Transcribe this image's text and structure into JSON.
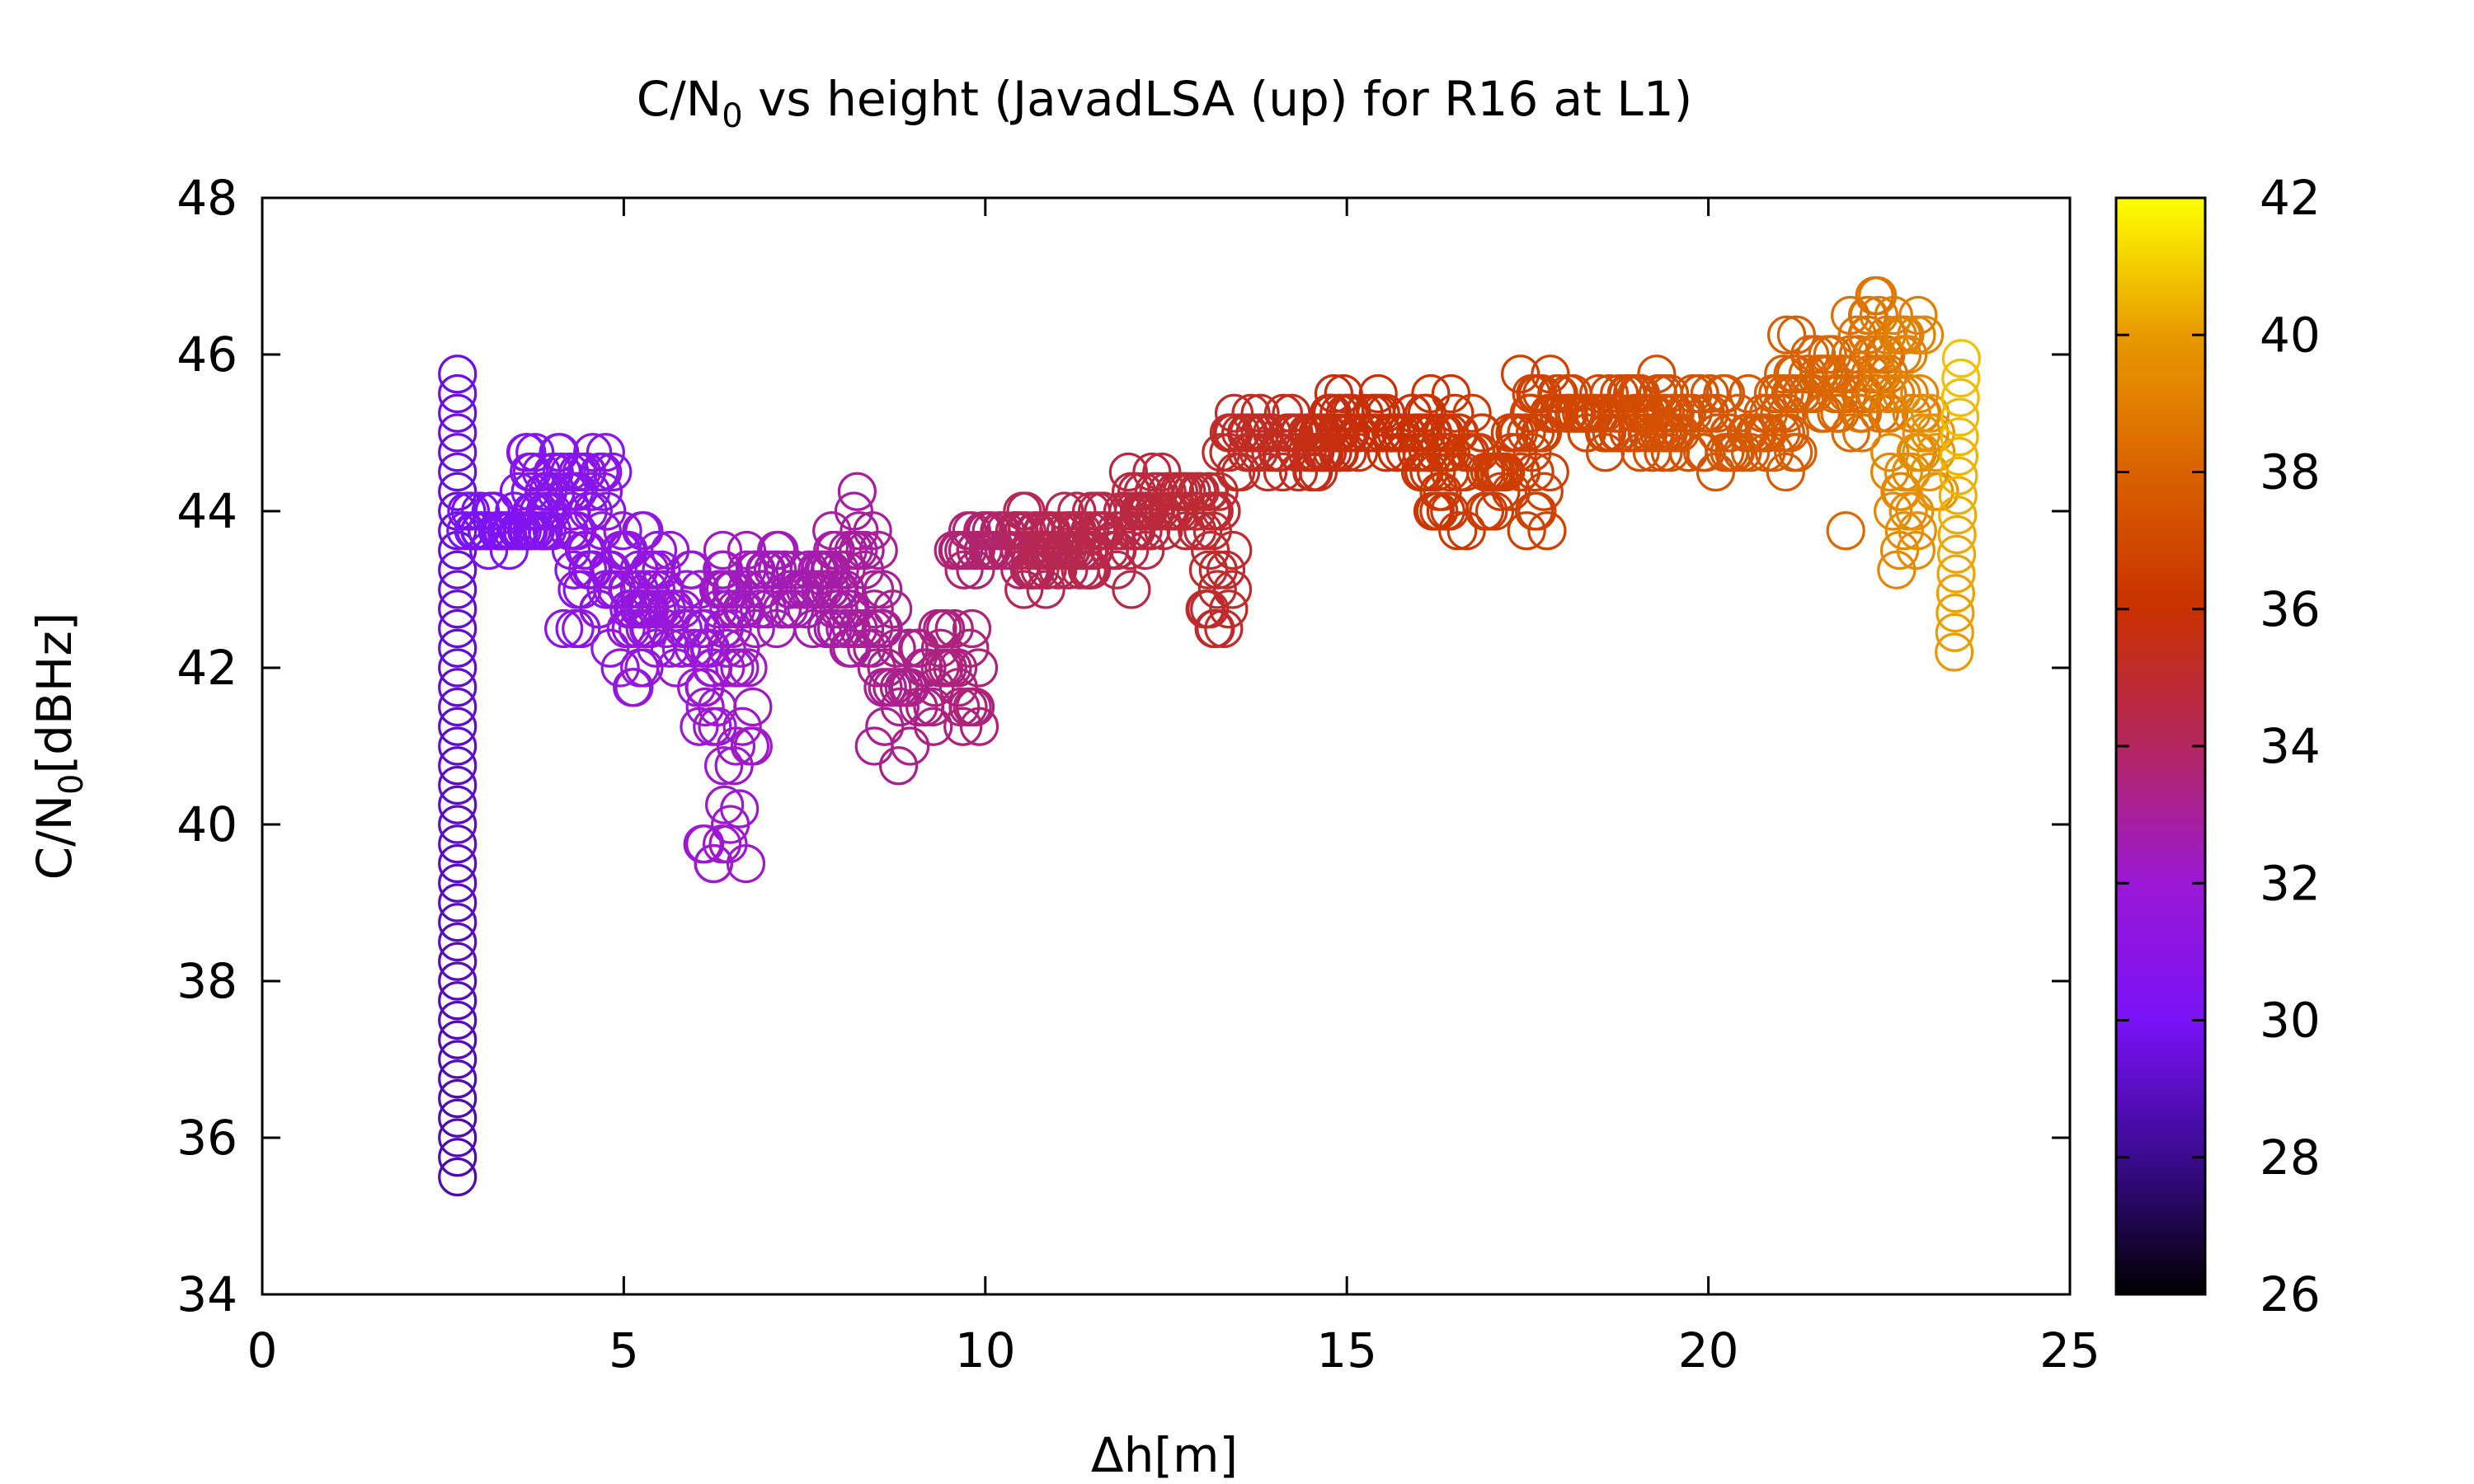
{
  "chart_data": {
    "type": "scatter",
    "title": {
      "main": "C/N",
      "sub": "0",
      "rest": " vs height (JavadLSA (up) for R16 at L1)"
    },
    "xlabel": "Δh[m]",
    "ylabel": {
      "main": "C/N",
      "sub": "0",
      "rest": "[dBHz]"
    },
    "xlim": [
      0,
      25
    ],
    "ylim": [
      34,
      48
    ],
    "xticks": [
      "0",
      "5",
      "10",
      "15",
      "20",
      "25"
    ],
    "yticks": [
      "34",
      "36",
      "38",
      "40",
      "42",
      "44",
      "46",
      "48"
    ],
    "colorbar": {
      "range": [
        26,
        42
      ],
      "ticks": [
        "26",
        "28",
        "30",
        "32",
        "34",
        "36",
        "38",
        "40",
        "42"
      ]
    },
    "marker": "open-circle",
    "grid": false,
    "segments": [
      {
        "x": [
          2.7,
          2.7
        ],
        "y": [
          35.5,
          45.8
        ],
        "c": [
          28.6,
          29.6
        ],
        "step": 0.25
      },
      {
        "x": [
          2.8,
          4.0
        ],
        "y": [
          43.6,
          44.0
        ],
        "c": [
          30.0,
          30.6
        ],
        "jitter": 0.4
      },
      {
        "x": [
          3.6,
          4.8
        ],
        "y": [
          44.0,
          44.8
        ],
        "c": [
          30.6,
          31.0
        ],
        "jitter": 0.5
      },
      {
        "x": [
          4.2,
          5.5
        ],
        "y": [
          42.5,
          43.8
        ],
        "c": [
          31.0,
          31.5
        ],
        "jitter": 0.6
      },
      {
        "x": [
          5.0,
          6.5
        ],
        "y": [
          42.0,
          43.2
        ],
        "c": [
          31.5,
          32.0
        ],
        "jitter": 0.7
      },
      {
        "x": [
          6.0,
          6.8
        ],
        "y": [
          39.2,
          42.0
        ],
        "c": [
          32.0,
          32.3
        ],
        "jitter": 0.8
      },
      {
        "x": [
          6.3,
          8.2
        ],
        "y": [
          42.6,
          43.5
        ],
        "c": [
          32.3,
          32.8
        ],
        "jitter": 0.4
      },
      {
        "x": [
          7.8,
          8.6
        ],
        "y": [
          42.0,
          44.2
        ],
        "c": [
          32.8,
          33.1
        ],
        "jitter": 0.6
      },
      {
        "x": [
          8.4,
          9.9
        ],
        "y": [
          41.2,
          42.6
        ],
        "c": [
          33.1,
          33.6
        ],
        "jitter": 0.6
      },
      {
        "x": [
          9.6,
          11.5
        ],
        "y": [
          43.3,
          43.8
        ],
        "c": [
          33.6,
          34.2
        ],
        "jitter": 0.3
      },
      {
        "x": [
          10.5,
          12.3
        ],
        "y": [
          43.2,
          44.0
        ],
        "c": [
          34.2,
          34.6
        ],
        "jitter": 0.5
      },
      {
        "x": [
          12.0,
          13.3
        ],
        "y": [
          43.8,
          44.4
        ],
        "c": [
          34.6,
          35.0
        ],
        "jitter": 0.4
      },
      {
        "x": [
          13.0,
          13.4
        ],
        "y": [
          42.5,
          43.5
        ],
        "c": [
          35.0,
          35.1
        ],
        "jitter": 0.4
      },
      {
        "x": [
          13.3,
          15.0
        ],
        "y": [
          44.6,
          45.2
        ],
        "c": [
          35.1,
          35.6
        ],
        "jitter": 0.4
      },
      {
        "x": [
          14.5,
          16.5
        ],
        "y": [
          44.8,
          45.3
        ],
        "c": [
          35.6,
          36.2
        ],
        "jitter": 0.4
      },
      {
        "x": [
          16.0,
          17.8
        ],
        "y": [
          44.0,
          45.0
        ],
        "c": [
          36.2,
          36.7
        ],
        "jitter": 0.6
      },
      {
        "x": [
          17.5,
          19.5
        ],
        "y": [
          45.0,
          45.5
        ],
        "c": [
          36.7,
          37.2
        ],
        "jitter": 0.4
      },
      {
        "x": [
          19.0,
          21.2
        ],
        "y": [
          44.6,
          45.4
        ],
        "c": [
          37.2,
          37.8
        ],
        "jitter": 0.5
      },
      {
        "x": [
          21.0,
          22.5
        ],
        "y": [
          45.2,
          46.0
        ],
        "c": [
          37.8,
          38.5
        ],
        "jitter": 0.5
      },
      {
        "x": [
          22.0,
          23.0
        ],
        "y": [
          45.0,
          46.6
        ],
        "c": [
          38.5,
          39.3
        ],
        "jitter": 0.7
      },
      {
        "x": [
          22.5,
          23.2
        ],
        "y": [
          43.5,
          45.2
        ],
        "c": [
          39.3,
          39.8
        ],
        "jitter": 0.8
      },
      {
        "x": [
          23.4,
          23.5
        ],
        "y": [
          42.2,
          46.0
        ],
        "c": [
          40.0,
          40.8
        ],
        "step": 0.25
      }
    ],
    "extra_points": [
      {
        "x": 21.9,
        "y": 43.75,
        "c": 38.2
      },
      {
        "x": 22.9,
        "y": 46.5,
        "c": 39.0
      },
      {
        "x": 22.3,
        "y": 46.75,
        "c": 38.6
      },
      {
        "x": 8.8,
        "y": 40.75,
        "c": 33.3
      },
      {
        "x": 17.4,
        "y": 45.75,
        "c": 36.6
      },
      {
        "x": 6.6,
        "y": 40.2,
        "c": 32.1
      }
    ]
  }
}
